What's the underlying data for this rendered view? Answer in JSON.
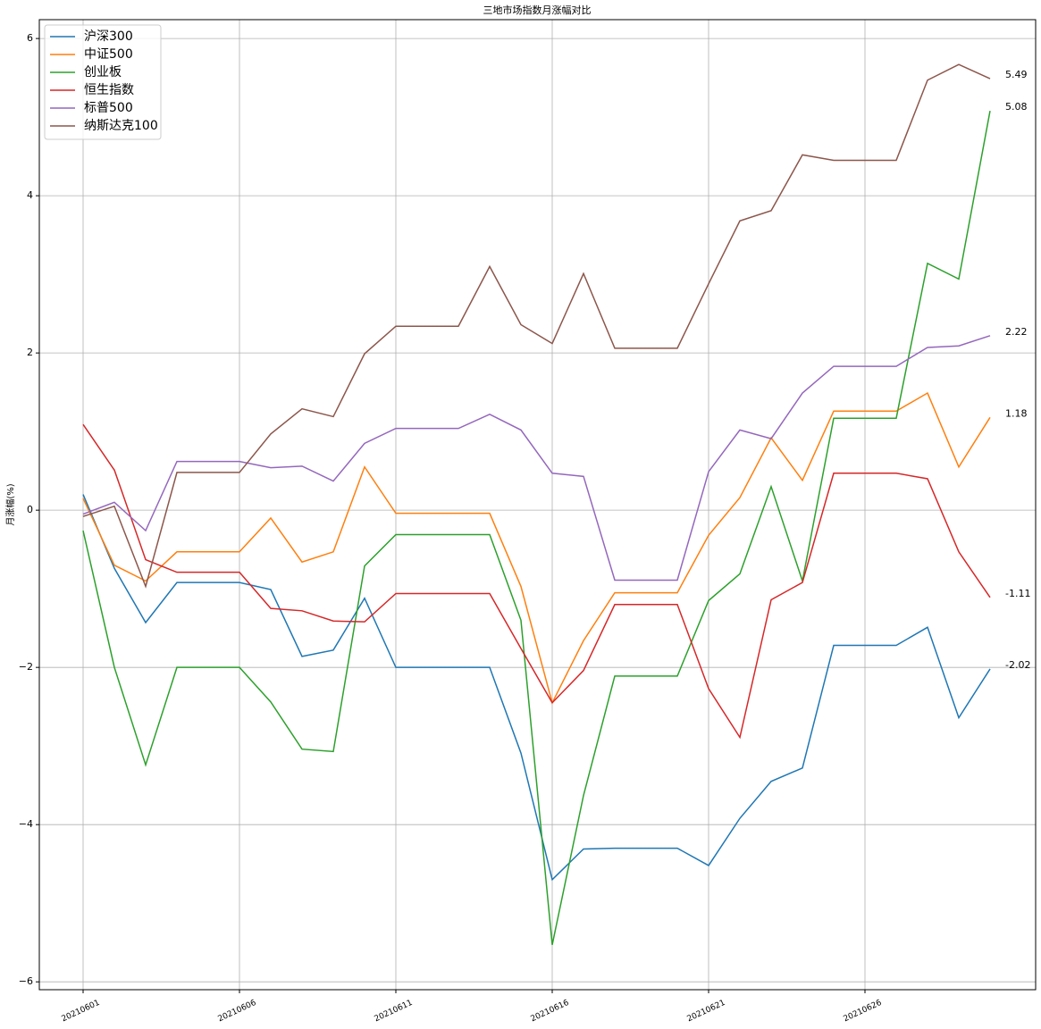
{
  "chart_data": {
    "type": "line",
    "title": "三地市场指数月涨幅对比",
    "y_label": "月涨幅(%)",
    "categories": [
      "20210601",
      null,
      null,
      null,
      null,
      "20210606",
      null,
      null,
      null,
      null,
      "20210611",
      null,
      null,
      null,
      null,
      "20210616",
      null,
      null,
      null,
      null,
      "20210621",
      null,
      null,
      null,
      null,
      "20210626",
      null,
      null,
      null,
      null
    ],
    "ylim": [
      -6.1,
      6.24
    ],
    "yticks": [
      {
        "value": -6,
        "label": "−6"
      },
      {
        "value": -4,
        "label": "−4"
      },
      {
        "value": -2,
        "label": "−2"
      },
      0,
      2,
      4,
      6
    ],
    "grid": true,
    "legend": "upper left",
    "series": [
      {
        "name": "沪深300",
        "color": "#1f77b4",
        "last_label": "-2.02",
        "values": [
          0.2,
          -0.74,
          -1.43,
          -0.92,
          -0.92,
          -0.92,
          -1.01,
          -1.86,
          -1.78,
          -1.12,
          -2.0,
          -2.0,
          -2.0,
          -2.0,
          -3.09,
          -4.7,
          -4.31,
          -4.3,
          -4.3,
          -4.3,
          -4.52,
          -3.92,
          -3.45,
          -3.28,
          -1.72,
          -1.72,
          -1.72,
          -1.49,
          -2.64,
          -2.02
        ]
      },
      {
        "name": "中证500",
        "color": "#ff7f0e",
        "last_label": "1.18",
        "values": [
          0.15,
          -0.7,
          -0.9,
          -0.53,
          -0.53,
          -0.53,
          -0.1,
          -0.66,
          -0.53,
          0.55,
          -0.04,
          -0.04,
          -0.04,
          -0.04,
          -0.97,
          -2.45,
          -1.66,
          -1.05,
          -1.05,
          -1.05,
          -0.32,
          0.16,
          0.92,
          0.38,
          1.26,
          1.26,
          1.26,
          1.49,
          0.55,
          1.18
        ]
      },
      {
        "name": "创业板",
        "color": "#2ca02c",
        "last_label": "5.08",
        "values": [
          -0.26,
          -2.0,
          -3.24,
          -2.0,
          -2.0,
          -2.0,
          -2.44,
          -3.04,
          -3.07,
          -0.71,
          -0.31,
          -0.31,
          -0.31,
          -0.31,
          -1.4,
          -5.53,
          -3.63,
          -2.11,
          -2.11,
          -2.11,
          -1.15,
          -0.81,
          0.3,
          -0.9,
          1.17,
          1.17,
          1.17,
          3.14,
          2.94,
          5.08
        ]
      },
      {
        "name": "恒生指数",
        "color": "#d62728",
        "last_label": "-1.11",
        "values": [
          1.09,
          0.51,
          -0.63,
          -0.79,
          -0.79,
          -0.79,
          -1.25,
          -1.28,
          -1.41,
          -1.42,
          -1.06,
          -1.06,
          -1.06,
          -1.06,
          -1.76,
          -2.45,
          -2.04,
          -1.2,
          -1.2,
          -1.2,
          -2.27,
          -2.89,
          -1.14,
          -0.92,
          0.47,
          0.47,
          0.47,
          0.4,
          -0.53,
          -1.11
        ]
      },
      {
        "name": "标普500",
        "color": "#9467bd",
        "last_label": "2.22",
        "values": [
          -0.05,
          0.1,
          -0.26,
          0.62,
          0.62,
          0.62,
          0.54,
          0.56,
          0.37,
          0.85,
          1.04,
          1.04,
          1.04,
          1.22,
          1.02,
          0.47,
          0.43,
          -0.89,
          -0.89,
          -0.89,
          0.49,
          1.02,
          0.91,
          1.49,
          1.83,
          1.83,
          1.83,
          2.07,
          2.09,
          2.22
        ]
      },
      {
        "name": "纳斯达克100",
        "color": "#8c564b",
        "last_label": "5.49",
        "values": [
          -0.08,
          0.05,
          -0.97,
          0.48,
          0.48,
          0.48,
          0.97,
          1.29,
          1.19,
          1.99,
          2.34,
          2.34,
          2.34,
          3.1,
          2.36,
          2.12,
          3.01,
          2.06,
          2.06,
          2.06,
          2.88,
          3.68,
          3.81,
          4.52,
          4.45,
          4.45,
          4.45,
          5.47,
          5.67,
          5.49
        ]
      }
    ]
  }
}
